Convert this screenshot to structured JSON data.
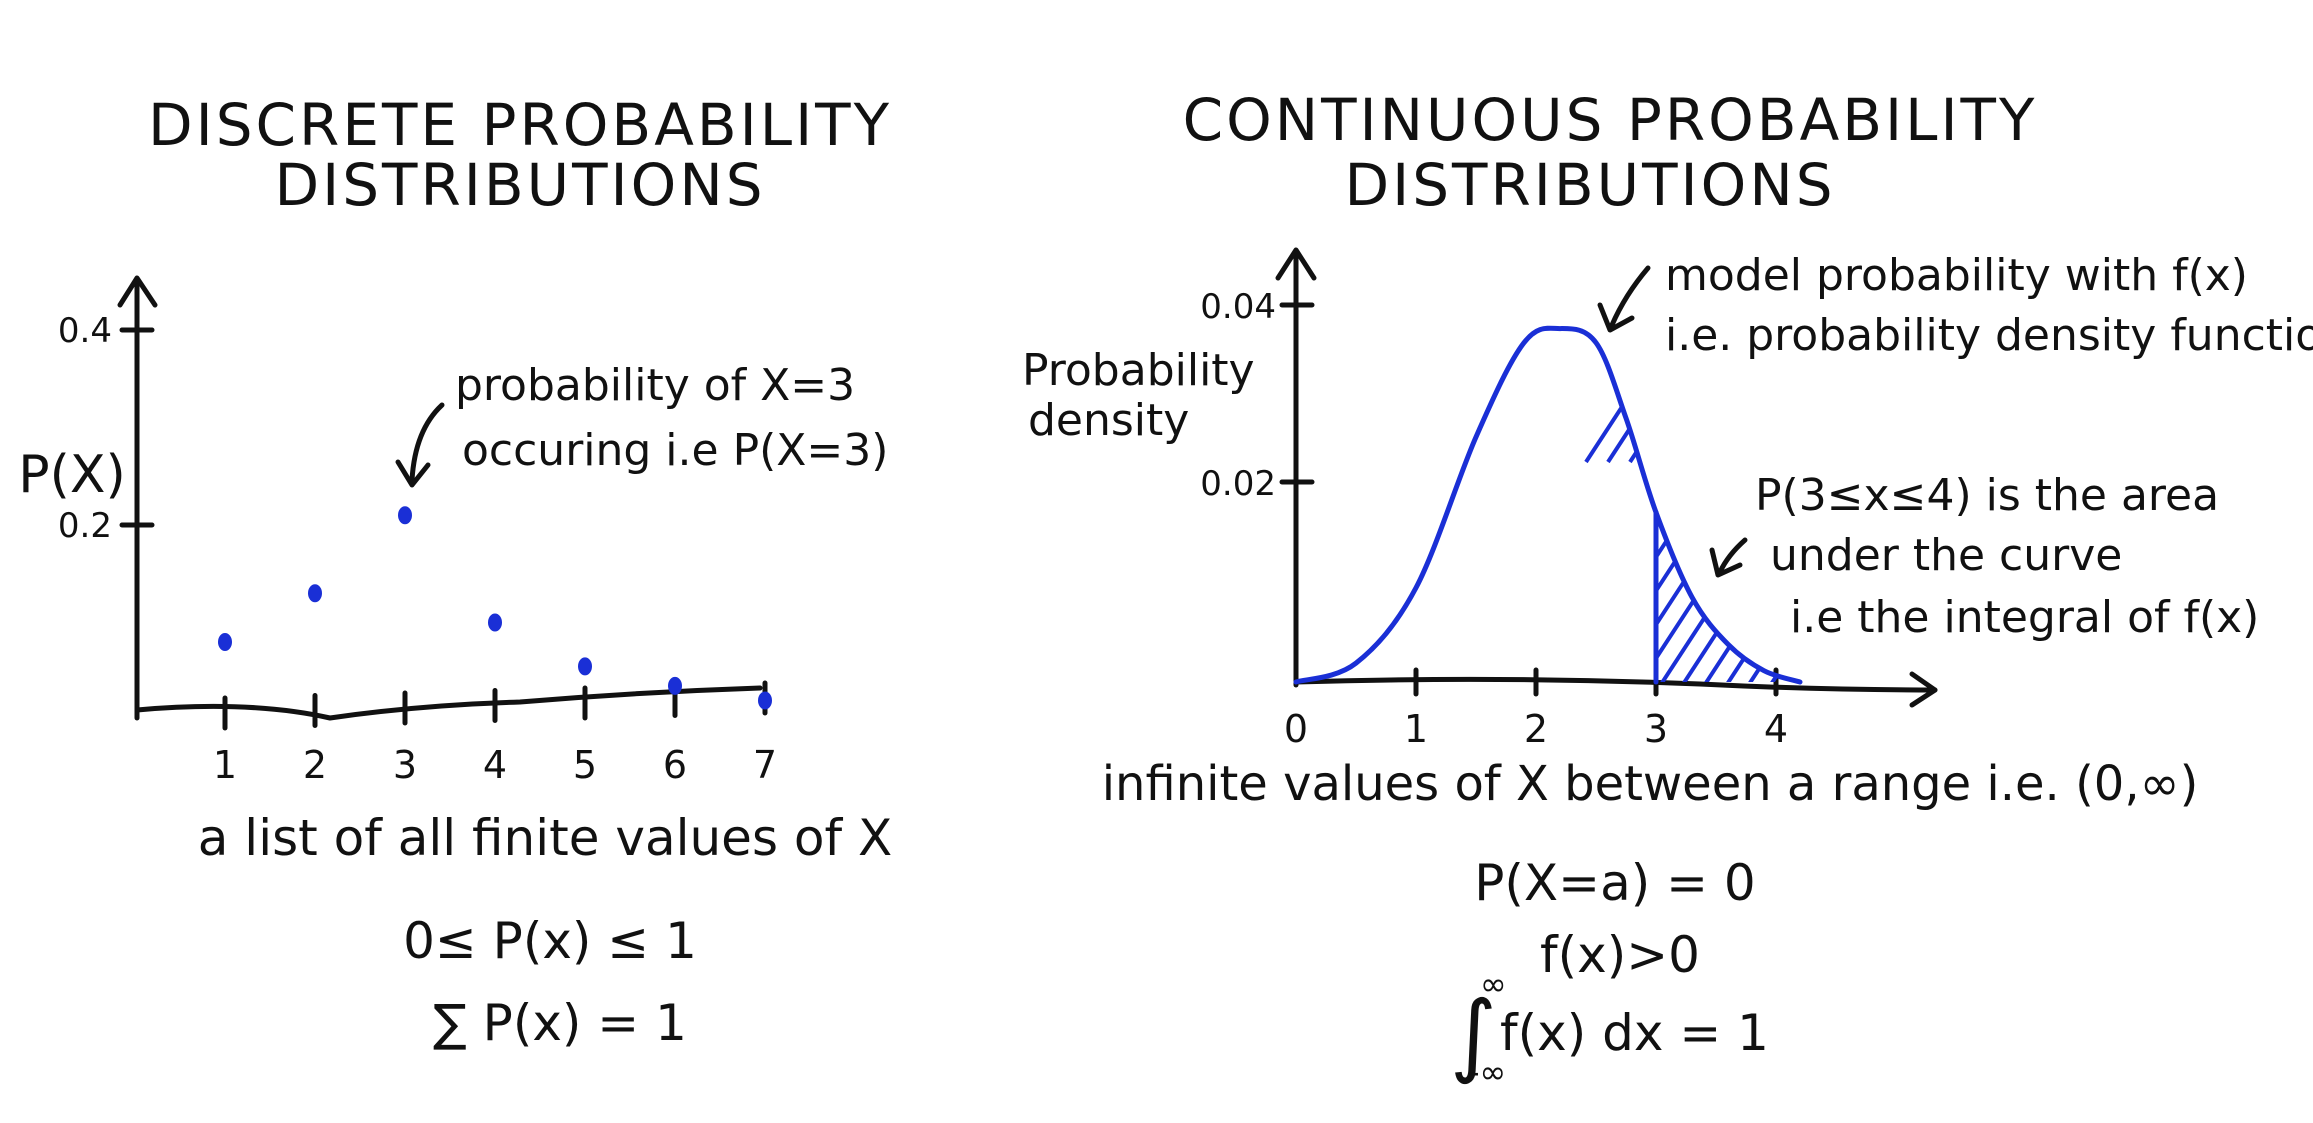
{
  "chart_data": [
    {
      "type": "scatter",
      "title": [
        "DISCRETE PROBABILITY",
        "DISTRIBUTIONS"
      ],
      "ylabel": "P(X)",
      "xlabel": "a list of all finite values of X",
      "x_ticks": [
        "1",
        "2",
        "3",
        "4",
        "5",
        "6",
        "7"
      ],
      "y_ticks": [
        "0.2",
        "0.4"
      ],
      "ylim": [
        0,
        0.45
      ],
      "points": [
        {
          "x": 1,
          "y": 0.08
        },
        {
          "x": 2,
          "y": 0.13
        },
        {
          "x": 3,
          "y": 0.21
        },
        {
          "x": 4,
          "y": 0.1
        },
        {
          "x": 5,
          "y": 0.055
        },
        {
          "x": 6,
          "y": 0.035
        },
        {
          "x": 7,
          "y": 0.02
        }
      ],
      "annotation": [
        "probability of X=3",
        "occuring i.e P(X=3)"
      ],
      "formulas": [
        "0≤ P(x) ≤ 1",
        "∑ P(x) = 1"
      ],
      "point_color": "#1a2fd6"
    },
    {
      "type": "area",
      "title": [
        "CONTINUOUS PROBABILITY",
        "DISTRIBUTIONS"
      ],
      "ylabel": [
        "Probability",
        "density"
      ],
      "xlabel": "infinite values of X between a range  i.e. (0,∞)",
      "x_ticks": [
        "0",
        "1",
        "2",
        "3",
        "4"
      ],
      "y_ticks": [
        "0.02",
        "0.04"
      ],
      "xlim": [
        0,
        4.8
      ],
      "ylim": [
        0,
        0.045
      ],
      "curve": [
        {
          "x": 0.0,
          "y": 0.0
        },
        {
          "x": 0.5,
          "y": 0.002
        },
        {
          "x": 1.0,
          "y": 0.01
        },
        {
          "x": 1.5,
          "y": 0.026
        },
        {
          "x": 1.9,
          "y": 0.036
        },
        {
          "x": 2.2,
          "y": 0.0375
        },
        {
          "x": 2.5,
          "y": 0.036
        },
        {
          "x": 2.75,
          "y": 0.028
        },
        {
          "x": 3.0,
          "y": 0.018
        },
        {
          "x": 3.3,
          "y": 0.009
        },
        {
          "x": 3.6,
          "y": 0.004
        },
        {
          "x": 3.9,
          "y": 0.0012
        },
        {
          "x": 4.2,
          "y": 0.0
        }
      ],
      "shaded_range": [
        3,
        4
      ],
      "annotation_top": [
        "model probability with f(x)",
        "i.e. probability density function"
      ],
      "annotation_area": [
        "P(3≤x≤4) is the area",
        "under the curve",
        "i.e the integral of f(x)"
      ],
      "formulas": [
        "P(X=a) = 0",
        "f(x)>0",
        "f(x) dx = 1"
      ],
      "integral_limits": [
        "∞",
        "-∞"
      ],
      "line_color": "#1a2fd6"
    }
  ]
}
